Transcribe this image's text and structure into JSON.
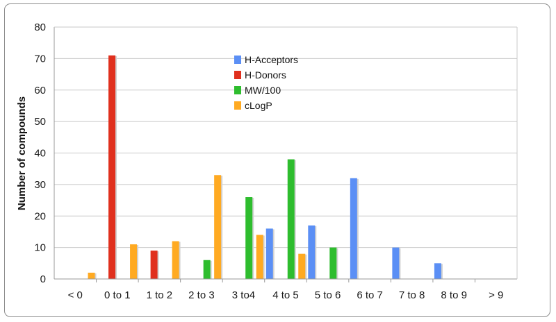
{
  "chart_data": {
    "type": "bar",
    "title": "",
    "xlabel": "",
    "ylabel": "Number of compounds",
    "ylim": [
      0,
      80
    ],
    "yticks": [
      "0",
      "10",
      "20",
      "30",
      "40",
      "50",
      "60",
      "70",
      "80"
    ],
    "grid": true,
    "legend_position": "top-center",
    "categories": [
      "< 0",
      "0 to 1",
      "1 to 2",
      "2 to 3",
      "3 to4",
      "4 to 5",
      "5 to 6",
      "6 to 7",
      "7 to 8",
      "8 to 9",
      "> 9"
    ],
    "series": [
      {
        "name": "H-Acceptors",
        "color": "#5b8ff5",
        "values": [
          0,
          0,
          0,
          0,
          0,
          16,
          17,
          32,
          10,
          5,
          0
        ]
      },
      {
        "name": "H-Donors",
        "color": "#e0301e",
        "values": [
          0,
          71,
          9,
          0,
          0,
          0,
          0,
          0,
          0,
          0,
          0
        ]
      },
      {
        "name": "MW/100",
        "color": "#2ebd2e",
        "values": [
          0,
          0,
          0,
          6,
          26,
          38,
          10,
          0,
          0,
          0,
          0
        ]
      },
      {
        "name": "cLogP",
        "color": "#ffaa22",
        "values": [
          2,
          11,
          12,
          33,
          14,
          8,
          0,
          0,
          0,
          0,
          0
        ]
      }
    ]
  }
}
